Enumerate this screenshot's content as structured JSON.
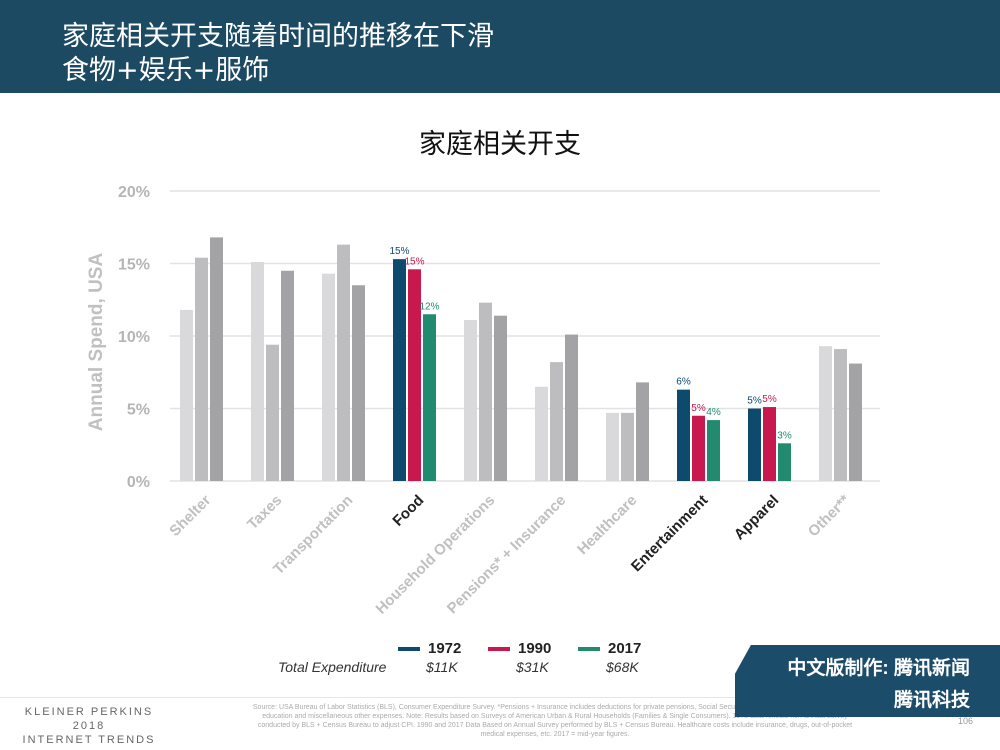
{
  "header": {
    "line1": "家庭相关开支随着时间的推移在下滑",
    "line2": "食物+娱乐+服饰"
  },
  "chart_data": {
    "type": "bar",
    "title": "家庭相关开支",
    "ylabel": "Annual Spend, USA",
    "ylim": [
      0,
      20
    ],
    "yticks": [
      "0%",
      "5%",
      "10%",
      "15%",
      "20%"
    ],
    "categories": [
      "Shelter",
      "Taxes",
      "Transportation",
      "Food",
      "Household Operations",
      "Pensions* + Insurance",
      "Healthcare",
      "Entertainment",
      "Apparel",
      "Other**"
    ],
    "highlighted": [
      "Food",
      "Entertainment",
      "Apparel"
    ],
    "series": [
      {
        "name": "1972",
        "color": "#0d4a6e",
        "muted": "#d9d9db",
        "values": [
          11.8,
          15.1,
          14.3,
          15.3,
          11.1,
          6.5,
          4.7,
          6.3,
          5.0,
          9.3
        ]
      },
      {
        "name": "1990",
        "color": "#c8194f",
        "muted": "#bdbdc0",
        "values": [
          15.4,
          9.4,
          16.3,
          14.6,
          12.3,
          8.2,
          4.7,
          4.5,
          5.1,
          9.1
        ]
      },
      {
        "name": "2017",
        "color": "#228a6e",
        "muted": "#a3a3a6",
        "values": [
          16.8,
          14.5,
          13.5,
          11.5,
          11.4,
          10.1,
          6.8,
          4.2,
          2.6,
          8.1
        ]
      }
    ],
    "data_labels": {
      "Food": [
        "15%",
        "15%",
        "12%"
      ],
      "Entertainment": [
        "6%",
        "5%",
        "4%"
      ],
      "Apparel": [
        "5%",
        "5%",
        "3%"
      ]
    },
    "legend": {
      "total_label": "Total Expenditure",
      "totals": [
        "$11K",
        "$31K",
        "$68K"
      ]
    }
  },
  "badge": {
    "line1": "中文版制作: 腾讯新闻",
    "line2": "腾讯科技"
  },
  "footer": {
    "brand": [
      "KLEINER PERKINS",
      "2018",
      "INTERNET TRENDS"
    ],
    "source": "Source: USA Bureau of Labor Statistics (BLS), Consumer Expenditure Survey. *Pensions + Insurance includes deductions for private pensions, Social Security, and life insurance. **Other includes education and miscellaneous other expenses. Note: Results based on Surveys of American Urban & Rural Households (Families & Single Consumers). 1972 data reflects non-annual survey conducted by BLS + Census Bureau to adjust CPI. 1990 and 2017 Data Based on Annual Survey performed by BLS + Census Bureau. Healthcare costs include insurance, drugs, out-of-pocket medical expenses, etc. 2017 = mid-year figures.",
    "page": "106"
  }
}
